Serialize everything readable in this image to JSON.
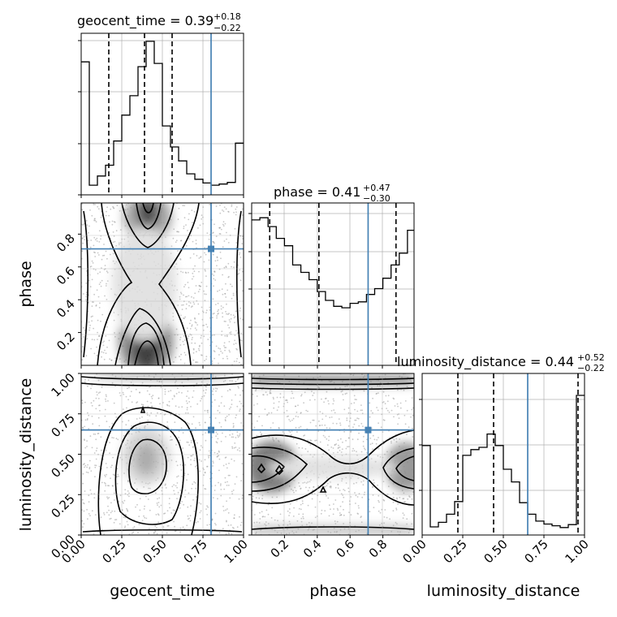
{
  "chart_data": {
    "type": "corner",
    "parameters": [
      "geocent_time",
      "phase",
      "luminosity_distance"
    ],
    "truths": {
      "geocent_time": 0.8,
      "phase": 0.71,
      "luminosity_distance": 0.65
    },
    "colors": {
      "truth": "#4682b4",
      "hist": "#000000",
      "grid": "#b0b0b0"
    },
    "diagonal": [
      {
        "param": "geocent_time",
        "title_main": "geocent_time = 0.39",
        "title_sup": "+0.18",
        "title_sub": "−0.22",
        "median": 0.39,
        "quantiles": [
          0.17,
          0.39,
          0.56
        ],
        "xlim": [
          0,
          1
        ],
        "bin_edges": [
          0,
          0.05,
          0.1,
          0.15,
          0.2,
          0.25,
          0.3,
          0.35,
          0.4,
          0.45,
          0.5,
          0.55,
          0.6,
          0.65,
          0.7,
          0.75,
          0.8,
          0.85,
          0.9,
          0.95,
          1.0
        ],
        "counts": [
          2.47,
          0.18,
          0.35,
          0.55,
          1.0,
          1.48,
          1.84,
          2.38,
          2.85,
          2.44,
          1.28,
          0.89,
          0.63,
          0.39,
          0.29,
          0.22,
          0.18,
          0.2,
          0.23,
          0.96
        ],
        "ylim": [
          0,
          3.0
        ]
      },
      {
        "param": "phase",
        "title_main": "phase = 0.41",
        "title_sup": "+0.47",
        "title_sub": "−0.30",
        "median": 0.41,
        "quantiles": [
          0.11,
          0.41,
          0.88
        ],
        "xlim": [
          0.0,
          0.99
        ],
        "bin_edges": [
          0.0,
          0.05,
          0.1,
          0.15,
          0.2,
          0.25,
          0.3,
          0.35,
          0.4,
          0.45,
          0.5,
          0.55,
          0.6,
          0.65,
          0.7,
          0.75,
          0.8,
          0.85,
          0.9,
          0.95,
          0.99
        ],
        "counts": [
          1.97,
          2.0,
          1.88,
          1.72,
          1.62,
          1.36,
          1.26,
          1.16,
          1.0,
          0.88,
          0.8,
          0.78,
          0.84,
          0.86,
          0.96,
          1.04,
          1.18,
          1.36,
          1.52,
          1.83
        ],
        "ylim": [
          0,
          2.2
        ]
      },
      {
        "param": "luminosity_distance",
        "title_main": "luminosity_distance = 0.44",
        "title_sup": "+0.52",
        "title_sub": "−0.22",
        "median": 0.44,
        "quantiles": [
          0.22,
          0.44,
          0.96
        ],
        "xlim": [
          0,
          1
        ],
        "bin_edges": [
          0,
          0.05,
          0.1,
          0.15,
          0.2,
          0.25,
          0.3,
          0.35,
          0.4,
          0.45,
          0.5,
          0.55,
          0.6,
          0.65,
          0.7,
          0.75,
          0.8,
          0.85,
          0.9,
          0.95,
          0.98,
          1.0
        ],
        "counts": [
          1.55,
          0.14,
          0.22,
          0.36,
          0.58,
          1.38,
          1.48,
          1.52,
          1.75,
          1.55,
          1.14,
          0.92,
          0.56,
          0.36,
          0.24,
          0.19,
          0.16,
          0.13,
          0.18,
          2.42,
          2.42
        ],
        "ylim": [
          0,
          2.8
        ]
      }
    ],
    "off_diagonal": [
      {
        "x": "geocent_time",
        "y": "phase",
        "xlim": [
          0,
          1
        ],
        "ylim": [
          0.0,
          0.99
        ]
      },
      {
        "x": "geocent_time",
        "y": "luminosity_distance",
        "xlim": [
          0,
          1
        ],
        "ylim": [
          0,
          1
        ]
      },
      {
        "x": "phase",
        "y": "luminosity_distance",
        "xlim": [
          0.0,
          0.99
        ],
        "ylim": [
          0,
          1
        ]
      }
    ],
    "ticks": {
      "geocent_time": {
        "values": [
          0.0,
          0.25,
          0.5,
          0.75,
          1.0
        ],
        "labels": [
          "0.00",
          "0.25",
          "0.50",
          "0.75",
          "1.00"
        ]
      },
      "phase": {
        "values": [
          0.2,
          0.4,
          0.6,
          0.8
        ],
        "labels": [
          "0.2",
          "0.4",
          "0.6",
          "0.8"
        ]
      },
      "luminosity_distance": {
        "values": [
          0.0,
          0.25,
          0.5,
          0.75,
          1.0
        ],
        "labels": [
          "0.00",
          "0.25",
          "0.50",
          "0.75",
          "1.00"
        ]
      }
    },
    "xlabels": [
      "geocent_time",
      "phase",
      "luminosity_distance"
    ],
    "ylabels": [
      "phase",
      "luminosity_distance"
    ]
  }
}
